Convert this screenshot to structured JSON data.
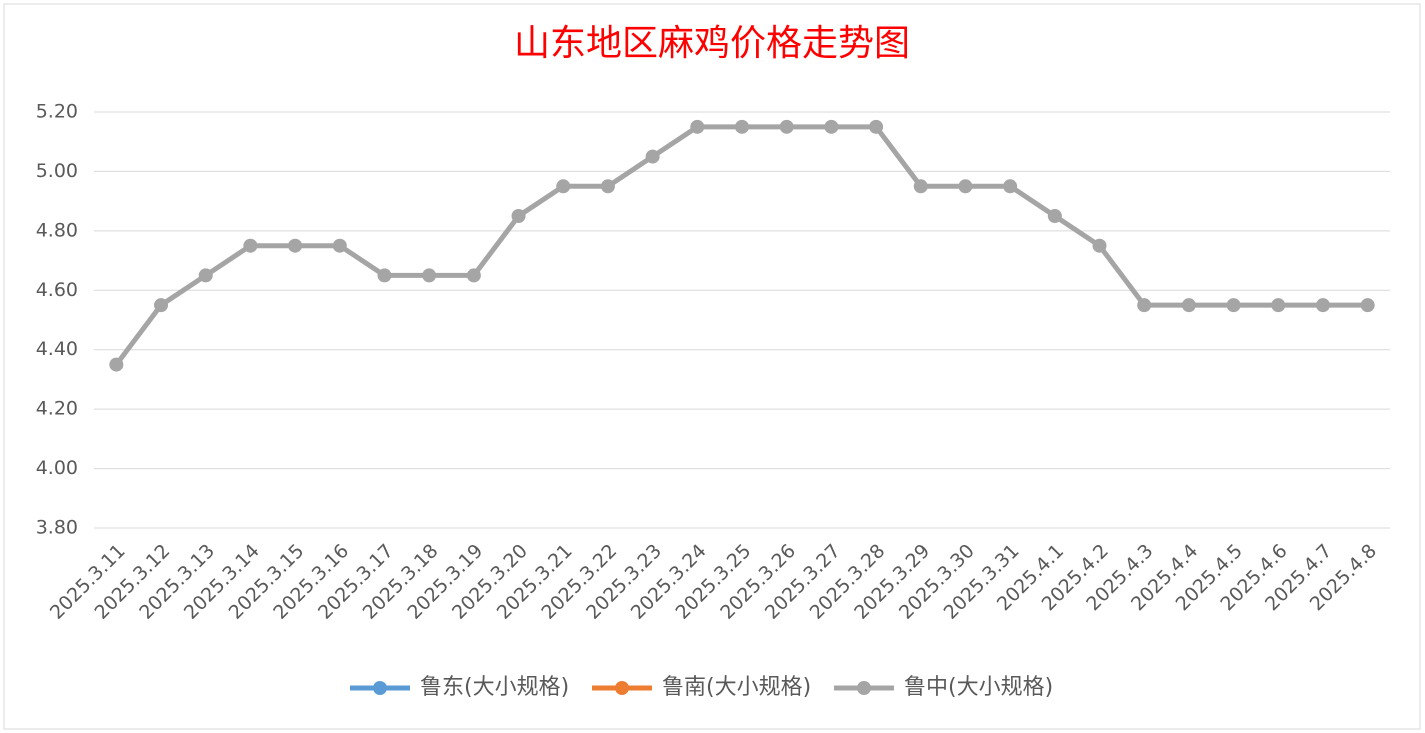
{
  "chart_data": {
    "type": "line",
    "title": "山东地区麻鸡价格走势图",
    "categories": [
      "2025.3.11",
      "2025.3.12",
      "2025.3.13",
      "2025.3.14",
      "2025.3.15",
      "2025.3.16",
      "2025.3.17",
      "2025.3.18",
      "2025.3.19",
      "2025.3.20",
      "2025.3.21",
      "2025.3.22",
      "2025.3.23",
      "2025.3.24",
      "2025.3.25",
      "2025.3.26",
      "2025.3.27",
      "2025.3.28",
      "2025.3.29",
      "2025.3.30",
      "2025.3.31",
      "2025.4.1",
      "2025.4.2",
      "2025.4.3",
      "2025.4.4",
      "2025.4.5",
      "2025.4.6",
      "2025.4.7",
      "2025.4.8"
    ],
    "series": [
      {
        "name": "鲁东(大小规格)",
        "color": "#5b9bd5",
        "values": [
          null,
          null,
          null,
          null,
          null,
          null,
          null,
          null,
          null,
          null,
          null,
          null,
          null,
          null,
          null,
          null,
          null,
          null,
          null,
          null,
          null,
          null,
          null,
          null,
          null,
          null,
          null,
          null,
          null
        ]
      },
      {
        "name": "鲁南(大小规格)",
        "color": "#ed7d31",
        "values": [
          null,
          null,
          null,
          null,
          null,
          null,
          null,
          null,
          null,
          null,
          null,
          null,
          null,
          null,
          null,
          null,
          null,
          null,
          null,
          null,
          null,
          null,
          null,
          null,
          null,
          null,
          null,
          null,
          null
        ]
      },
      {
        "name": "鲁中(大小规格)",
        "color": "#a5a5a5",
        "values": [
          4.35,
          4.55,
          4.65,
          4.75,
          4.75,
          4.75,
          4.65,
          4.65,
          4.65,
          4.85,
          4.95,
          4.95,
          5.05,
          5.15,
          5.15,
          5.15,
          5.15,
          5.15,
          4.95,
          4.95,
          4.95,
          4.85,
          4.75,
          4.55,
          4.55,
          4.55,
          4.55,
          4.55,
          4.55
        ]
      }
    ],
    "ylim": [
      3.8,
      5.2
    ],
    "yticks": [
      {
        "value": 3.8,
        "label": "3.80"
      },
      {
        "value": 4,
        "label": "4.00"
      },
      {
        "value": 4.2,
        "label": "4.20"
      },
      {
        "value": 4.4,
        "label": "4.40"
      },
      {
        "value": 4.6,
        "label": "4.60"
      },
      {
        "value": 4.8,
        "label": "4.80"
      },
      {
        "value": 5,
        "label": "5.00"
      },
      {
        "value": 5.2,
        "label": "5.20"
      }
    ],
    "grid": true,
    "legend": "bottom"
  }
}
